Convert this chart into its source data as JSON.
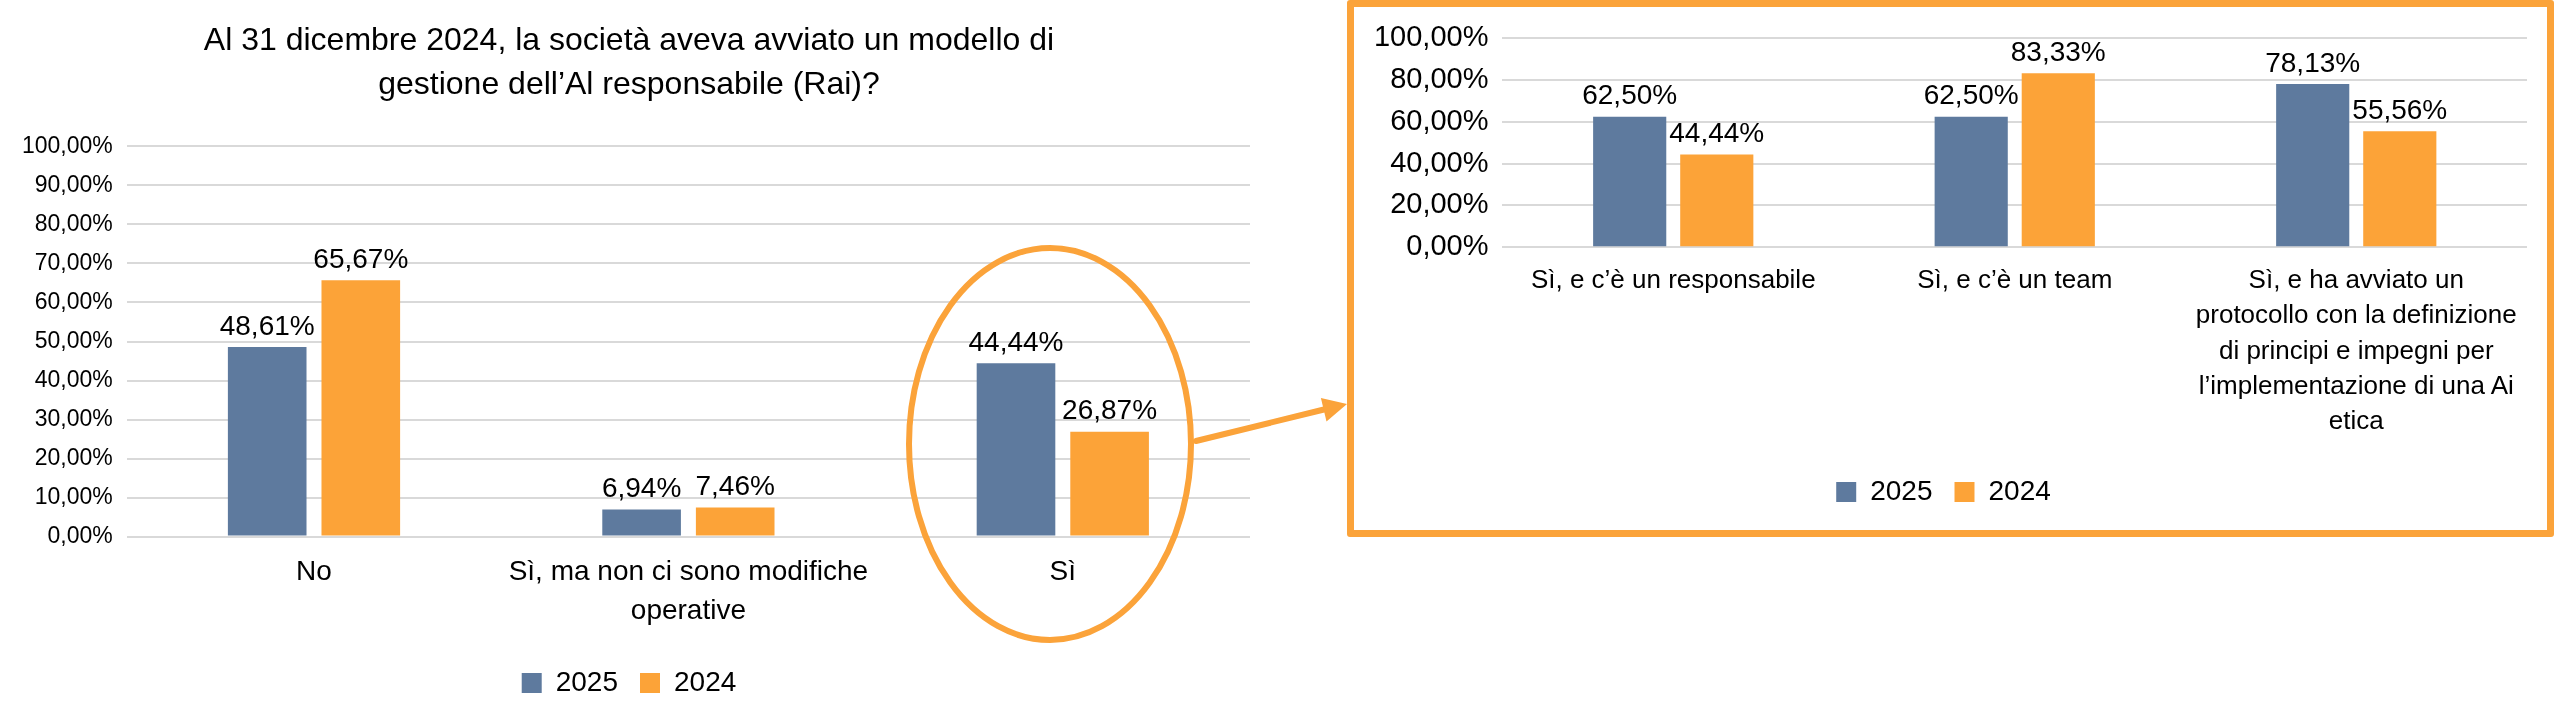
{
  "chart_data": [
    {
      "type": "bar",
      "title": "Al 31 dicembre 2024, la società aveva avviato un modello di gestione dell’Al responsabile (Rai)?",
      "categories": [
        "No",
        "Sì, ma non ci sono modifiche operative",
        "Sì"
      ],
      "series": [
        {
          "name": "2025",
          "color": "#5e7a9e",
          "values": [
            48.61,
            6.94,
            44.44
          ],
          "value_labels": [
            "48,61%",
            "6,94%",
            "44,44%"
          ]
        },
        {
          "name": "2024",
          "color": "#fca338",
          "values": [
            65.67,
            7.46,
            26.87
          ],
          "value_labels": [
            "65,67%",
            "7,46%",
            "26,87%"
          ]
        }
      ],
      "ylim": [
        0,
        100
      ],
      "yticks": [
        {
          "value": 0,
          "label": "0,00%"
        },
        {
          "value": 10,
          "label": "10,00%"
        },
        {
          "value": 20,
          "label": "20,00%"
        },
        {
          "value": 30,
          "label": "30,00%"
        },
        {
          "value": 40,
          "label": "40,00%"
        },
        {
          "value": 50,
          "label": "50,00%"
        },
        {
          "value": 60,
          "label": "60,00%"
        },
        {
          "value": 70,
          "label": "70,00%"
        },
        {
          "value": 80,
          "label": "80,00%"
        },
        {
          "value": 90,
          "label": "90,00%"
        },
        {
          "value": 100,
          "label": "100,00%"
        }
      ],
      "grid": "y",
      "legend": "bottom"
    },
    {
      "type": "bar",
      "categories": [
        "Sì, e c’è un responsabile",
        "Sì, e c’è un team",
        "Sì, e ha avviato un protocollo con la definizione di principi e impegni per l’implementazione di una Ai etica"
      ],
      "series": [
        {
          "name": "2025",
          "color": "#5e7a9e",
          "values": [
            62.5,
            62.5,
            78.13
          ],
          "value_labels": [
            "62,50%",
            "62,50%",
            "78,13%"
          ]
        },
        {
          "name": "2024",
          "color": "#fca338",
          "values": [
            44.44,
            83.33,
            55.56
          ],
          "value_labels": [
            "44,44%",
            "83,33%",
            "55,56%"
          ]
        }
      ],
      "ylim": [
        0,
        100
      ],
      "yticks": [
        {
          "value": 0,
          "label": "0,00%"
        },
        {
          "value": 20,
          "label": "20,00%"
        },
        {
          "value": 40,
          "label": "40,00%"
        },
        {
          "value": 60,
          "label": "60,00%"
        },
        {
          "value": 80,
          "label": "80,00%"
        },
        {
          "value": 100,
          "label": "100,00%"
        }
      ],
      "grid": "y",
      "legend": "bottom"
    }
  ]
}
